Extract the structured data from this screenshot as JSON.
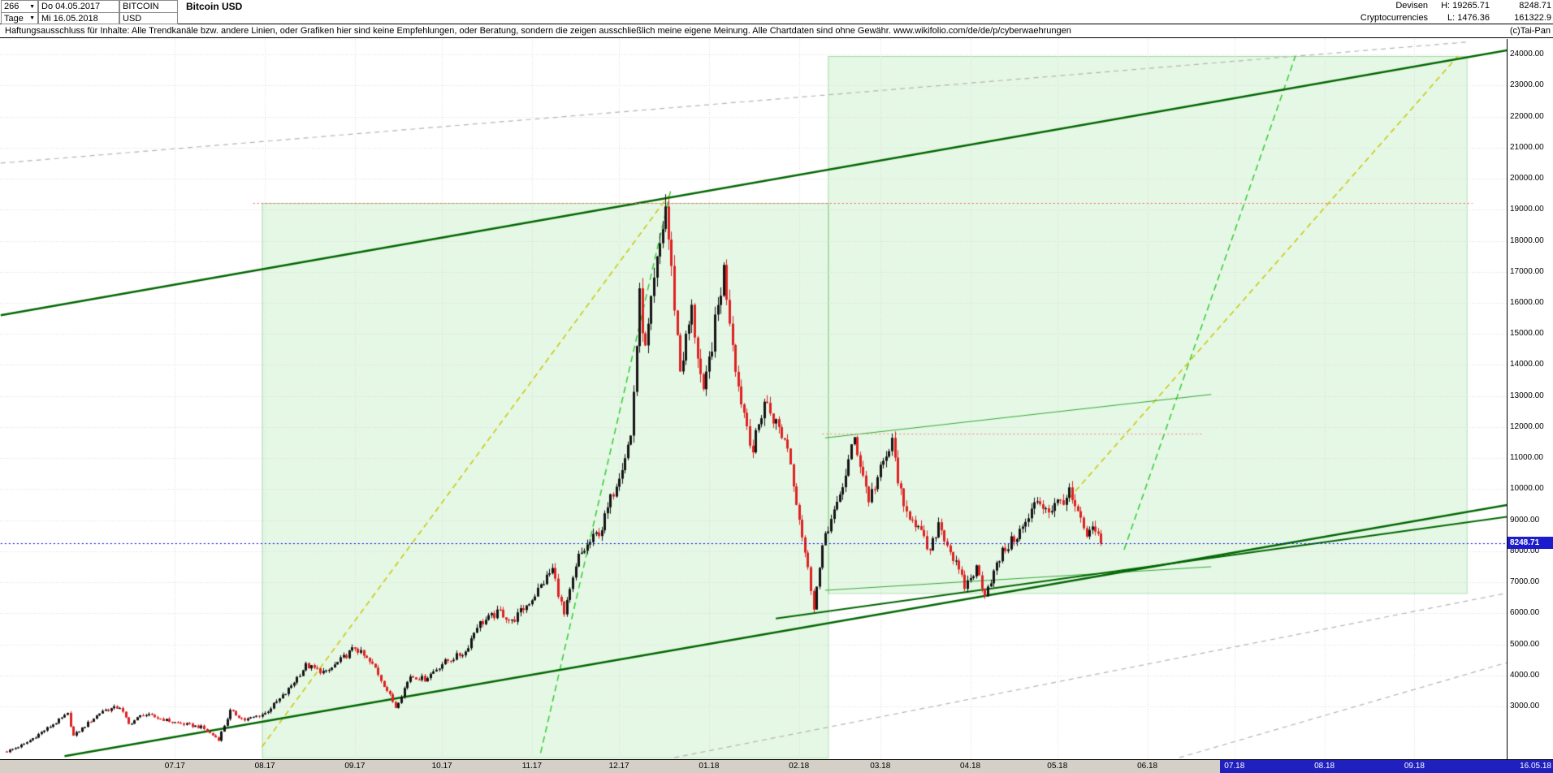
{
  "toolbar": {
    "bars_count": "266",
    "period": "Tage",
    "start_date": "Do 04.05.2017",
    "end_date": "Mi 16.05.2018",
    "symbol": "BITCOIN",
    "currency": "USD",
    "title": "Bitcoin USD",
    "category": "Devisen",
    "subcategory": "Cryptocurrencies",
    "high": "H: 19265.71",
    "low": "L: 1476.36",
    "last_price": "8248.71",
    "volume": "161322.9"
  },
  "disclaimer": "Haftungsausschluss für Inhalte: Alle Trendkanäle bzw. andere Linien, oder Grafiken hier sind keine Empfehlungen, oder Beratung, sondern die zeigen ausschließlich meine eigene Meinung. Alle Chartdaten sind ohne Gewähr.  www.wikifolio.com/de/de/p/cyberwaehrungen",
  "copyright": "(c)Tai-Pan",
  "price_tag": "8248.71",
  "axes": {
    "end_date_label": "16.05.18"
  },
  "colors": {
    "up": "#141414",
    "down": "#dd2222",
    "accent_blue": "#1c1ccc",
    "axis_bg": "#d4d0c8",
    "future_bg": "#2020bf",
    "grid": "#dcdcdc"
  },
  "chart_data": {
    "type": "candlestick",
    "title": "Bitcoin USD",
    "start_date": "2017-05-04",
    "end_date": "2018-05-16",
    "last_t": 377,
    "last_price": 8248.71,
    "ylim": [
      1300,
      24500
    ],
    "high_shown": 19265.71,
    "low_shown": 1476.36,
    "y_ticks": [
      24000,
      23000,
      22000,
      21000,
      20000,
      19000,
      18000,
      17000,
      16000,
      15000,
      14000,
      13000,
      12000,
      11000,
      10000,
      9000,
      8000,
      7000,
      6000,
      5000,
      4000,
      3000
    ],
    "months": [
      {
        "label": "07.17",
        "t": 58
      },
      {
        "label": "08.17",
        "t": 89
      },
      {
        "label": "09.17",
        "t": 120
      },
      {
        "label": "10.17",
        "t": 150
      },
      {
        "label": "11.17",
        "t": 181
      },
      {
        "label": "12.17",
        "t": 211
      },
      {
        "label": "01.18",
        "t": 242
      },
      {
        "label": "02.18",
        "t": 273
      },
      {
        "label": "03.18",
        "t": 301
      },
      {
        "label": "04.18",
        "t": 332
      },
      {
        "label": "05.18",
        "t": 362
      },
      {
        "label": "06.18",
        "t": 393
      },
      {
        "label": "07.18",
        "t": 423,
        "future": true
      },
      {
        "label": "08.18",
        "t": 454,
        "future": true
      },
      {
        "label": "09.18",
        "t": 485,
        "future": true
      }
    ],
    "future_start_t": 418,
    "price_path": [
      [
        "2017-05-04",
        1550
      ],
      [
        "2017-05-10",
        1780
      ],
      [
        "2017-05-25",
        2750
      ],
      [
        "2017-05-27",
        2050
      ],
      [
        "2017-06-06",
        2870
      ],
      [
        "2017-06-12",
        2980
      ],
      [
        "2017-06-15",
        2420
      ],
      [
        "2017-06-20",
        2750
      ],
      [
        "2017-07-01",
        2480
      ],
      [
        "2017-07-10",
        2330
      ],
      [
        "2017-07-16",
        1940
      ],
      [
        "2017-07-20",
        2850
      ],
      [
        "2017-07-25",
        2560
      ],
      [
        "2017-08-01",
        2780
      ],
      [
        "2017-08-08",
        3420
      ],
      [
        "2017-08-15",
        4320
      ],
      [
        "2017-08-22",
        4080
      ],
      [
        "2017-09-01",
        4900
      ],
      [
        "2017-09-08",
        4230
      ],
      [
        "2017-09-15",
        2980
      ],
      [
        "2017-09-20",
        3990
      ],
      [
        "2017-09-25",
        3880
      ],
      [
        "2017-10-01",
        4380
      ],
      [
        "2017-10-09",
        4760
      ],
      [
        "2017-10-13",
        5620
      ],
      [
        "2017-10-21",
        6050
      ],
      [
        "2017-10-25",
        5720
      ],
      [
        "2017-11-01",
        6480
      ],
      [
        "2017-11-08",
        7420
      ],
      [
        "2017-11-12",
        5930
      ],
      [
        "2017-11-17",
        7810
      ],
      [
        "2017-11-25",
        8760
      ],
      [
        "2017-11-30",
        10250
      ],
      [
        "2017-12-05",
        11700
      ],
      [
        "2017-12-08",
        16150
      ],
      [
        "2017-12-10",
        14420
      ],
      [
        "2017-12-13",
        16600
      ],
      [
        "2017-12-17",
        19100
      ],
      [
        "2017-12-22",
        13850
      ],
      [
        "2017-12-26",
        15750
      ],
      [
        "2017-12-30",
        12950
      ],
      [
        "2018-01-06",
        17050
      ],
      [
        "2018-01-11",
        13300
      ],
      [
        "2018-01-16",
        11250
      ],
      [
        "2018-01-20",
        12850
      ],
      [
        "2018-01-28",
        11400
      ],
      [
        "2018-02-01",
        9100
      ],
      [
        "2018-02-06",
        6250
      ],
      [
        "2018-02-10",
        8600
      ],
      [
        "2018-02-14",
        9420
      ],
      [
        "2018-02-20",
        11620
      ],
      [
        "2018-02-25",
        9680
      ],
      [
        "2018-03-05",
        11480
      ],
      [
        "2018-03-09",
        9270
      ],
      [
        "2018-03-12",
        9130
      ],
      [
        "2018-03-18",
        7920
      ],
      [
        "2018-03-21",
        8930
      ],
      [
        "2018-03-30",
        6860
      ],
      [
        "2018-04-03",
        7440
      ],
      [
        "2018-04-06",
        6660
      ],
      [
        "2018-04-12",
        7960
      ],
      [
        "2018-04-20",
        8870
      ],
      [
        "2018-04-24",
        9660
      ],
      [
        "2018-04-28",
        9320
      ],
      [
        "2018-05-05",
        9840
      ],
      [
        "2018-05-11",
        8460
      ],
      [
        "2018-05-14",
        8690
      ],
      [
        "2018-05-16",
        8248.71
      ]
    ],
    "regions": [
      {
        "name": "trend-channel-box-1",
        "t1": 88,
        "t2": 283,
        "p_top": 19216,
        "p_bottom": 1350,
        "fill": "rgba(150,225,150,0.25)",
        "stroke": "rgba(0,150,0,0.30)"
      },
      {
        "name": "trend-channel-box-2",
        "t1": 283,
        "t2": 503,
        "p_top": 23950,
        "p_bottom": 6650,
        "fill": "rgba(150,225,150,0.25)",
        "stroke": "rgba(0,150,0,0.30)"
      }
    ],
    "lines": [
      {
        "name": "gray-dashed-upper",
        "color": "#b4b4b4",
        "width": 1.2,
        "dash": [
          6,
          5
        ],
        "pts": [
          [
            -2,
            20500
          ],
          [
            503,
            24400
          ]
        ]
      },
      {
        "name": "gray-dashed-lower-1",
        "color": "#b4b4b4",
        "width": 1.2,
        "dash": [
          6,
          5
        ],
        "pts": [
          [
            230,
            1350
          ],
          [
            533,
            6950
          ]
        ]
      },
      {
        "name": "gray-dashed-lower-2",
        "color": "#b4b4b4",
        "width": 1.2,
        "dash": [
          6,
          5
        ],
        "pts": [
          [
            404,
            1350
          ],
          [
            533,
            4850
          ]
        ]
      },
      {
        "name": "yellow-dashed-rally-2017",
        "color": "#c8c800",
        "width": 1.5,
        "dash": [
          7,
          5
        ],
        "pts": [
          [
            88,
            1700
          ],
          [
            228,
            19450
          ]
        ]
      },
      {
        "name": "yellow-dashed-projection-2018",
        "color": "#c8c800",
        "width": 1.5,
        "dash": [
          7,
          5
        ],
        "pts": [
          [
            366,
            9700
          ],
          [
            500,
            23950
          ]
        ]
      },
      {
        "name": "green-dashed-rally-2017",
        "color": "#33cc33",
        "width": 1.5,
        "dash": [
          8,
          5
        ],
        "pts": [
          [
            184,
            1500
          ],
          [
            229,
            19700
          ]
        ]
      },
      {
        "name": "green-dashed-projection-2018",
        "color": "#33cc33",
        "width": 1.5,
        "dash": [
          8,
          5
        ],
        "pts": [
          [
            385,
            8050
          ],
          [
            444,
            23950
          ]
        ]
      },
      {
        "name": "thin-green-resistance",
        "color": "#33aa33",
        "width": 1,
        "dash": null,
        "pts": [
          [
            282,
            11650
          ],
          [
            415,
            13050
          ]
        ]
      },
      {
        "name": "thin-green-support",
        "color": "#33aa33",
        "width": 1,
        "dash": null,
        "pts": [
          [
            282,
            6740
          ],
          [
            415,
            7500
          ]
        ]
      },
      {
        "name": "upper-channel-line",
        "color": "#006600",
        "width": 2.5,
        "dash": null,
        "pts": [
          [
            -2,
            15600
          ],
          [
            533,
            24400
          ]
        ]
      },
      {
        "name": "lower-channel-line",
        "color": "#006600",
        "width": 2.5,
        "dash": null,
        "pts": [
          [
            20,
            1400
          ],
          [
            533,
            9750
          ]
        ]
      },
      {
        "name": "support-line-2018",
        "color": "#006600",
        "width": 2,
        "dash": null,
        "pts": [
          [
            265,
            5830
          ],
          [
            533,
            9320
          ]
        ]
      }
    ],
    "hlines": [
      {
        "name": "resistance-19200",
        "color": "#ff6060",
        "width": 1,
        "dash": [
          2,
          3
        ],
        "p": 19216,
        "t1": 85,
        "t2": 505,
        "above_candles": false
      },
      {
        "name": "resistance-11800",
        "color": "#ff8080",
        "width": 1,
        "dash": [
          2,
          3
        ],
        "p": 11800,
        "t1": 281,
        "t2": 412,
        "above_candles": false
      },
      {
        "name": "current-price-line",
        "color": "#0000ee",
        "width": 1,
        "dash": [
          2,
          3
        ],
        "p": 8248.71,
        "t1": -2,
        "t2": 517,
        "above_candles": true
      }
    ]
  }
}
